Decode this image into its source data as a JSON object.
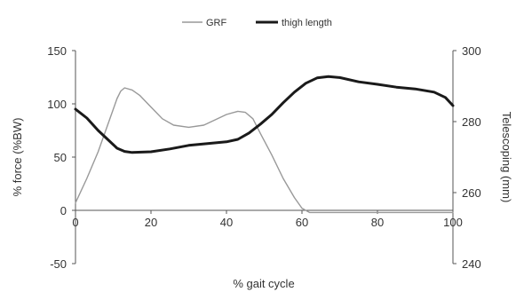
{
  "chart_data": {
    "type": "line",
    "title": "",
    "xlabel": "% gait cycle",
    "ylabel": "% force (%BW)",
    "y2label": "Telescoping (mm)",
    "xlim": [
      0,
      100
    ],
    "ylim": [
      -50,
      150
    ],
    "y2lim": [
      240,
      300
    ],
    "x_ticks": [
      "0",
      "20",
      "40",
      "60",
      "80",
      "100"
    ],
    "y_ticks": [
      "-50",
      "0",
      "50",
      "100",
      "150"
    ],
    "y2_ticks": [
      "240",
      "260",
      "280",
      "300"
    ],
    "grid": false,
    "legend": "top",
    "series": [
      {
        "name": "GRF",
        "axis": "left",
        "color": "#999999",
        "points": [
          [
            0,
            7
          ],
          [
            3,
            30
          ],
          [
            6,
            55
          ],
          [
            9,
            85
          ],
          [
            11,
            105
          ],
          [
            12,
            112
          ],
          [
            13,
            115
          ],
          [
            15,
            113
          ],
          [
            17,
            108
          ],
          [
            20,
            97
          ],
          [
            23,
            86
          ],
          [
            26,
            80
          ],
          [
            30,
            78
          ],
          [
            34,
            80
          ],
          [
            37,
            85
          ],
          [
            40,
            90
          ],
          [
            43,
            93
          ],
          [
            45,
            92
          ],
          [
            47,
            86
          ],
          [
            49,
            72
          ],
          [
            52,
            52
          ],
          [
            55,
            30
          ],
          [
            58,
            12
          ],
          [
            60,
            2
          ],
          [
            62,
            -2
          ],
          [
            70,
            -2
          ],
          [
            80,
            -2
          ],
          [
            90,
            -2
          ],
          [
            100,
            -2
          ]
        ]
      },
      {
        "name": "thigh length",
        "axis": "right",
        "color": "#1a1a1a",
        "points": [
          [
            0,
            283.5
          ],
          [
            3,
            281
          ],
          [
            6,
            277.5
          ],
          [
            9,
            274.5
          ],
          [
            11,
            272.5
          ],
          [
            13,
            271.6
          ],
          [
            15,
            271.3
          ],
          [
            20,
            271.5
          ],
          [
            25,
            272.3
          ],
          [
            30,
            273.3
          ],
          [
            35,
            273.8
          ],
          [
            40,
            274.3
          ],
          [
            43,
            275
          ],
          [
            46,
            276.8
          ],
          [
            49,
            279.3
          ],
          [
            52,
            282
          ],
          [
            55,
            285.3
          ],
          [
            58,
            288.3
          ],
          [
            61,
            290.8
          ],
          [
            64,
            292.3
          ],
          [
            67,
            292.7
          ],
          [
            70,
            292.4
          ],
          [
            75,
            291.2
          ],
          [
            80,
            290.5
          ],
          [
            85,
            289.7
          ],
          [
            90,
            289.2
          ],
          [
            95,
            288.3
          ],
          [
            98,
            286.8
          ],
          [
            100,
            284.5
          ]
        ]
      }
    ]
  }
}
